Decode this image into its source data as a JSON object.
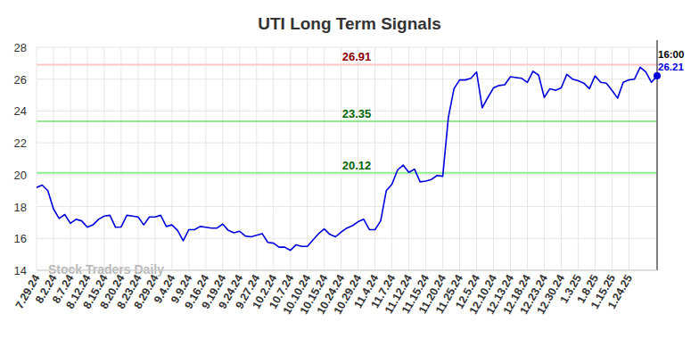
{
  "chart_data": {
    "type": "line",
    "title": "UTI Long Term Signals",
    "watermark": "Stock Traders Daily",
    "categories": [
      "7.29.24",
      null,
      null,
      "8.2.24",
      null,
      null,
      "8.7.24",
      null,
      null,
      "8.12.24",
      null,
      null,
      "8.15.24",
      null,
      null,
      "8.20.24",
      null,
      null,
      "8.23.24",
      null,
      null,
      "8.29.24",
      null,
      null,
      "9.4.24",
      null,
      null,
      "9.9.24",
      null,
      null,
      "9.16.24",
      null,
      null,
      "9.19.24",
      null,
      null,
      "9.24.24",
      null,
      null,
      "9.27.24",
      null,
      null,
      "10.2.24",
      null,
      null,
      "10.7.24",
      null,
      null,
      "10.10.24",
      null,
      null,
      "10.15.24",
      null,
      null,
      "10.24.24",
      null,
      null,
      "10.29.24",
      null,
      null,
      "11.4.24",
      null,
      null,
      "11.7.24",
      null,
      null,
      "11.12.24",
      null,
      null,
      "11.15.24",
      null,
      null,
      "11.20.24",
      null,
      null,
      "11.25.24",
      null,
      null,
      "12.5.24",
      null,
      null,
      "12.10.24",
      null,
      null,
      "12.13.24",
      null,
      null,
      "12.18.24",
      null,
      null,
      "12.23.24",
      null,
      null,
      "12.30.24",
      null,
      null,
      "1.3.25",
      null,
      null,
      "1.8.25",
      null,
      null,
      "1.15.25",
      null,
      null,
      "1.24.25",
      null,
      null,
      null,
      null,
      null
    ],
    "series": [
      {
        "name": "UTI",
        "color": "#0000dd",
        "values": [
          19.2,
          19.35,
          19.0,
          17.85,
          17.25,
          17.5,
          16.95,
          17.2,
          17.1,
          16.7,
          16.85,
          17.2,
          17.4,
          17.45,
          16.7,
          16.72,
          17.45,
          17.4,
          17.35,
          16.85,
          17.35,
          17.35,
          17.45,
          16.75,
          16.85,
          16.5,
          15.85,
          16.55,
          16.55,
          16.75,
          16.7,
          16.65,
          16.65,
          16.9,
          16.5,
          16.35,
          16.45,
          16.15,
          16.1,
          16.2,
          16.3,
          15.75,
          15.7,
          15.45,
          15.45,
          15.25,
          15.6,
          15.5,
          15.5,
          15.9,
          16.3,
          16.6,
          16.25,
          16.1,
          16.4,
          16.65,
          16.8,
          17.05,
          17.2,
          16.55,
          16.55,
          17.1,
          19.0,
          19.4,
          20.3,
          20.6,
          20.15,
          20.35,
          19.55,
          19.6,
          19.7,
          19.95,
          19.9,
          23.6,
          25.4,
          25.95,
          25.95,
          26.05,
          26.45,
          24.2,
          24.85,
          25.45,
          25.6,
          25.65,
          26.15,
          26.1,
          26.05,
          25.8,
          26.5,
          26.25,
          24.85,
          25.4,
          25.3,
          25.45,
          26.3,
          26.0,
          25.9,
          25.75,
          25.4,
          26.2,
          25.8,
          25.75,
          25.3,
          24.8,
          25.8,
          25.95,
          26.0,
          26.75,
          26.45,
          25.8,
          26.21
        ]
      }
    ],
    "ylim": [
      14,
      28
    ],
    "yticks": [
      14,
      16,
      18,
      20,
      22,
      24,
      26,
      28
    ],
    "grid": true,
    "reference_lines": [
      {
        "value": 26.91,
        "color": "#ffc8c8",
        "label_color": "#8b0000"
      },
      {
        "value": 23.35,
        "color": "#90ee90",
        "label_color": "#006400"
      },
      {
        "value": 20.12,
        "color": "#90ee90",
        "label_color": "#006400"
      }
    ],
    "end_label": "16:00"
  }
}
